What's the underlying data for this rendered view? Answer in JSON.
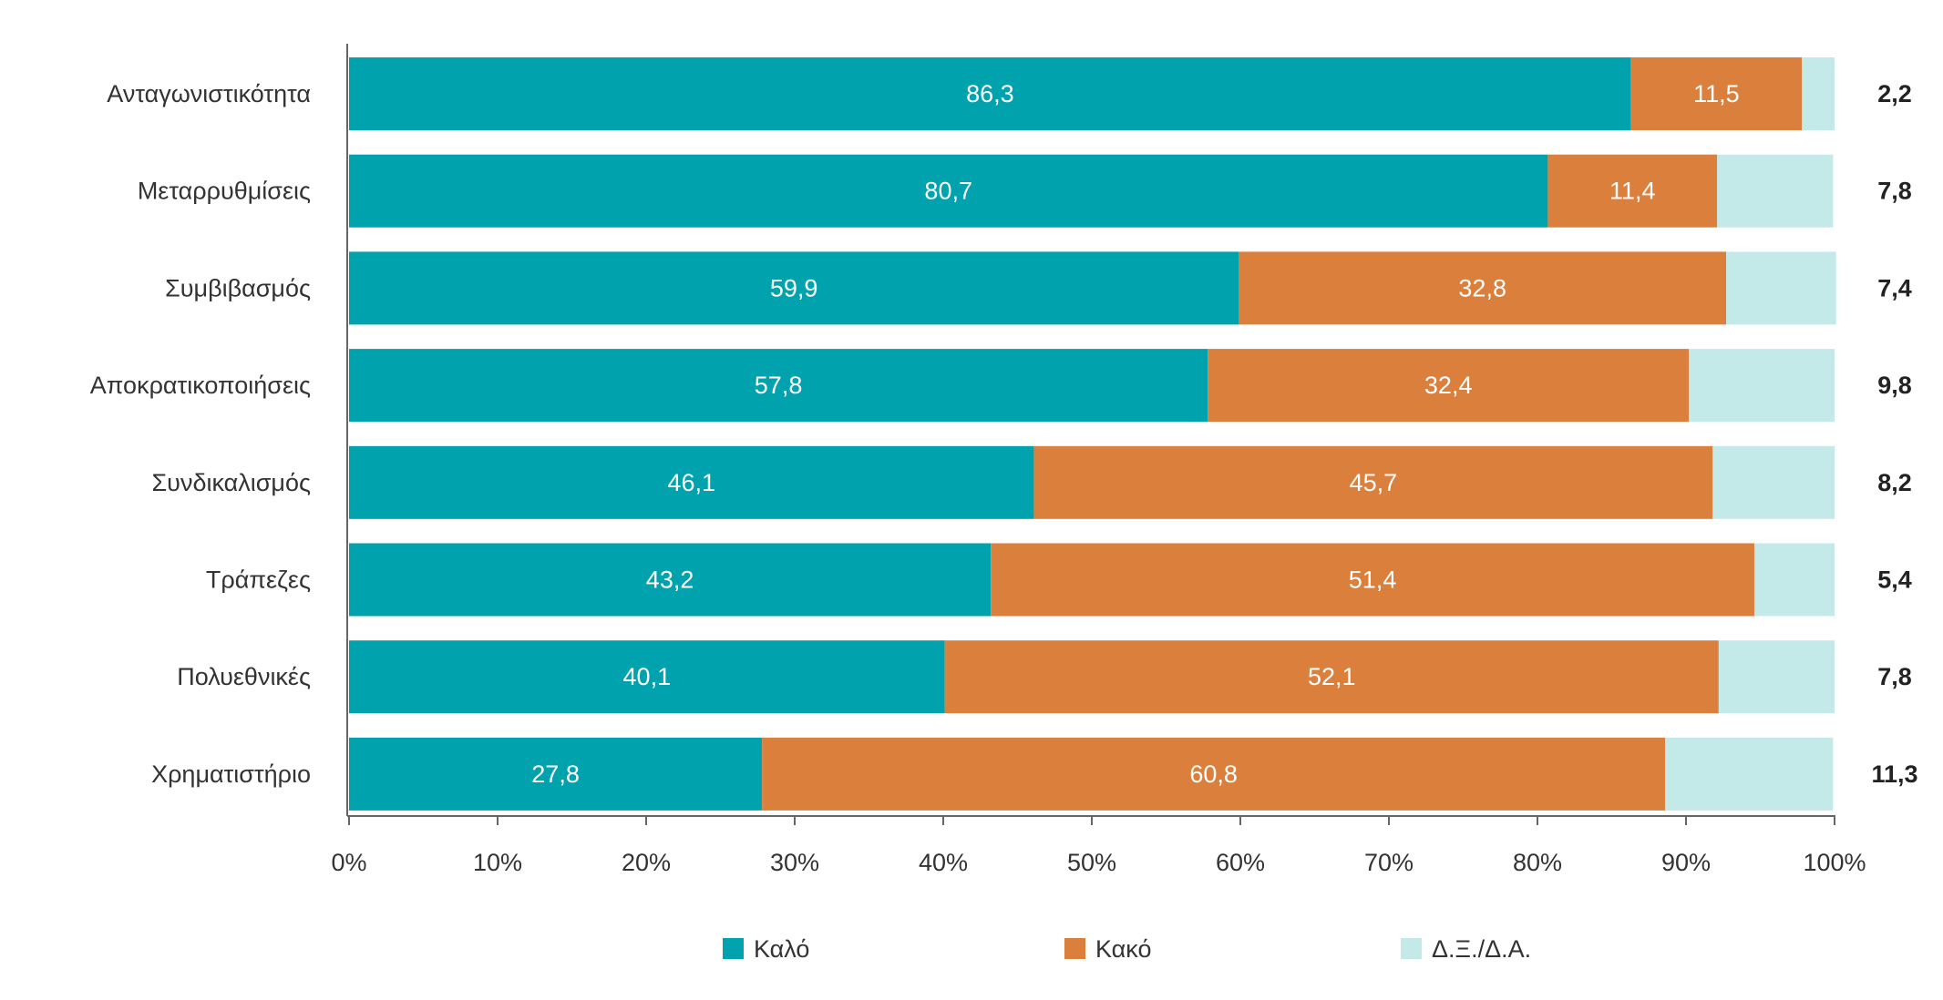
{
  "chart_data": {
    "type": "bar",
    "orientation": "horizontal",
    "stacked": true,
    "categories": [
      "Ανταγωνιστικότητα",
      "Μεταρρυθμίσεις",
      "Συμβιβασμός",
      "Αποκρατικοποιήσεις",
      "Συνδικαλισμός",
      "Τράπεζες",
      "Πολυεθνικές",
      "Χρηματιστήριο"
    ],
    "series": [
      {
        "name": "Καλό",
        "color": "#00a3ad",
        "values": [
          86.3,
          80.7,
          59.9,
          57.8,
          46.1,
          43.2,
          40.1,
          27.8
        ],
        "labels": [
          "86,3",
          "80,7",
          "59,9",
          "57,8",
          "46,1",
          "43,2",
          "40,1",
          "27,8"
        ]
      },
      {
        "name": "Κακό",
        "color": "#db7f3d",
        "values": [
          11.5,
          11.4,
          32.8,
          32.4,
          45.7,
          51.4,
          52.1,
          60.8
        ],
        "labels": [
          "11,5",
          "11,4",
          "32,8",
          "32,4",
          "45,7",
          "51,4",
          "52,1",
          "60,8"
        ]
      },
      {
        "name": "Δ.Ξ./Δ.Α.",
        "color": "#c4e9e9",
        "values": [
          2.2,
          7.8,
          7.4,
          9.8,
          8.2,
          5.4,
          7.8,
          11.3
        ],
        "labels": [
          "2,2",
          "7,8",
          "7,4",
          "9,8",
          "8,2",
          "5,4",
          "7,8",
          "11,3"
        ]
      }
    ],
    "xlim": [
      0,
      100
    ],
    "xticks": [
      "0%",
      "10%",
      "20%",
      "30%",
      "40%",
      "50%",
      "60%",
      "70%",
      "80%",
      "90%",
      "100%"
    ],
    "xlabel": "",
    "ylabel": "",
    "title": "",
    "legend_position": "bottom",
    "grid": false
  }
}
